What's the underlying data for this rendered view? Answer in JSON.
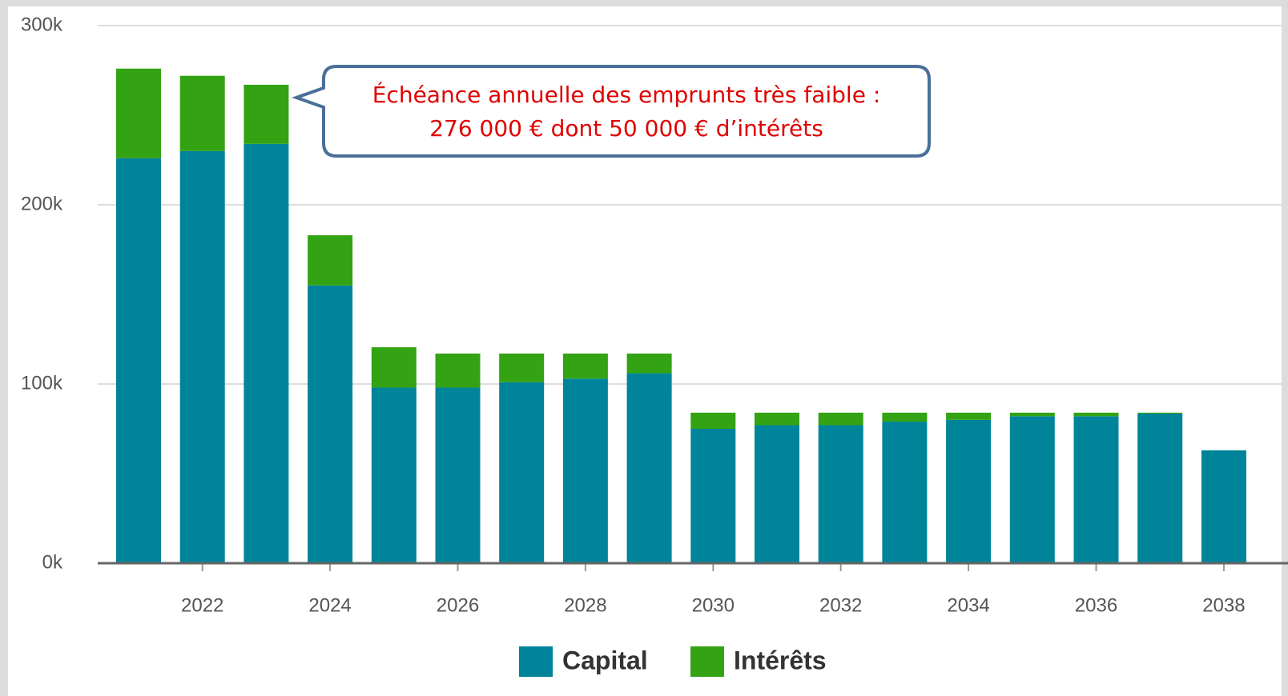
{
  "chart_data": {
    "type": "stacked-bar",
    "categories": [
      null,
      "2022",
      null,
      "2024",
      null,
      "2026",
      null,
      "2028",
      null,
      "2030",
      null,
      "2032",
      null,
      "2034",
      null,
      "2036",
      null,
      "2038"
    ],
    "series": [
      {
        "name": "Capital",
        "color": "#00849a",
        "values": [
          226000,
          230000,
          234000,
          155000,
          98000,
          98000,
          101000,
          103000,
          106000,
          75000,
          77000,
          77000,
          79000,
          80000,
          82000,
          82000,
          83500,
          63000
        ]
      },
      {
        "name": "Intérêts",
        "color": "#33a314",
        "values": [
          50000,
          42000,
          33000,
          28000,
          22500,
          19000,
          16000,
          14000,
          11000,
          9000,
          7000,
          7000,
          5000,
          4000,
          2000,
          2000,
          500,
          0
        ]
      }
    ],
    "ylim": [
      0,
      300000
    ],
    "yticks": [
      {
        "value": 0,
        "label": "0k"
      },
      {
        "value": 100000,
        "label": "100k"
      },
      {
        "value": 200000,
        "label": "200k"
      },
      {
        "value": 300000,
        "label": "300k"
      }
    ],
    "grid": true,
    "annotation": [
      "Échéance annuelle des emprunts très faible :",
      "276 000 € dont 50 000 € d’intérêts"
    ]
  }
}
